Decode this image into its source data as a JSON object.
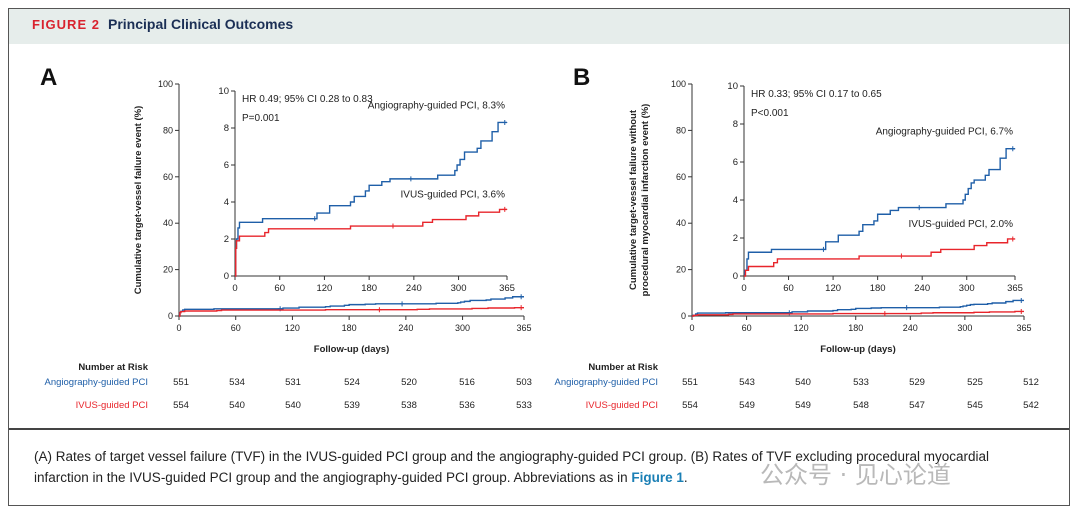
{
  "header": {
    "figure_label": "FIGURE 2",
    "title": "Principal Clinical Outcomes"
  },
  "colors": {
    "angio": "#1f5fa8",
    "ivus": "#e8252b",
    "header_bg": "#e6edeb",
    "figure_label": "#d9232e"
  },
  "risk_table": {
    "title": "Number at Risk"
  },
  "caption": {
    "text": "(A) Rates of target vessel failure (TVF) in the IVUS-guided PCI group and the angiography-guided PCI group. (B) Rates of TVF excluding procedural myocardial infarction in the IVUS-guided PCI group and the angiography-guided PCI group. Abbreviations as in ",
    "link": "Figure 1",
    "end": "."
  },
  "watermark": "公众号 · 见心论道",
  "chart_data": [
    {
      "type": "line",
      "panel": "A",
      "ylabel": "Cumulative target-vessel failure event (%)",
      "xlabel": "Follow-up (days)",
      "xlim": [
        0,
        365
      ],
      "ylim": [
        0,
        100
      ],
      "xticks": [
        0,
        60,
        120,
        180,
        240,
        300,
        365
      ],
      "yticks": [
        0,
        20,
        40,
        60,
        80,
        100
      ],
      "inset": {
        "ylim": [
          0,
          10
        ],
        "yticks": [
          0,
          2,
          4,
          6,
          8,
          10
        ],
        "xticks": [
          0,
          60,
          120,
          180,
          240,
          300,
          365
        ],
        "annotations": [
          "HR 0.49; 95% CI 0.28 to 0.83",
          "P=0.001"
        ]
      },
      "series": [
        {
          "name": "Angiography-guided PCI",
          "label": "Angiography-guided PCI, 8.3%",
          "color": "#1f5fa8",
          "steps": [
            [
              0,
              0
            ],
            [
              1,
              1.5
            ],
            [
              2,
              2
            ],
            [
              4,
              2.6
            ],
            [
              6,
              2.9
            ],
            [
              37,
              3.1
            ],
            [
              107,
              3.1
            ],
            [
              110,
              3.4
            ],
            [
              127,
              3.8
            ],
            [
              155,
              4.0
            ],
            [
              160,
              4.3
            ],
            [
              175,
              4.6
            ],
            [
              180,
              4.9
            ],
            [
              197,
              5.1
            ],
            [
              208,
              5.25
            ],
            [
              272,
              5.45
            ],
            [
              295,
              5.7
            ],
            [
              298,
              6.0
            ],
            [
              302,
              6.3
            ],
            [
              308,
              6.7
            ],
            [
              325,
              6.9
            ],
            [
              330,
              7.3
            ],
            [
              345,
              7.8
            ],
            [
              353,
              8.3
            ],
            [
              365,
              8.3
            ]
          ],
          "censored": [
            107,
            236,
            362
          ],
          "at_risk": [
            551,
            534,
            531,
            524,
            520,
            516,
            503
          ]
        },
        {
          "name": "IVUS-guided PCI",
          "label": "IVUS-guided PCI, 3.6%",
          "color": "#e8252b",
          "steps": [
            [
              0,
              0
            ],
            [
              1,
              1.5
            ],
            [
              2,
              1.9
            ],
            [
              6,
              2.15
            ],
            [
              40,
              2.35
            ],
            [
              45,
              2.55
            ],
            [
              155,
              2.7
            ],
            [
              252,
              2.9
            ],
            [
              265,
              3.05
            ],
            [
              310,
              3.25
            ],
            [
              327,
              3.45
            ],
            [
              355,
              3.6
            ],
            [
              365,
              3.6
            ]
          ],
          "censored": [
            212,
            362
          ],
          "at_risk": [
            554,
            540,
            540,
            539,
            538,
            536,
            533
          ]
        }
      ]
    },
    {
      "type": "line",
      "panel": "B",
      "ylabel": "Cumulative target-vessel failure without procedural myocardial infarction event (%)",
      "ylabel_lines": [
        "Cumulative target-vessel failure without",
        "procedural myocardial infarction event (%)"
      ],
      "xlabel": "Follow-up (days)",
      "xlim": [
        0,
        365
      ],
      "ylim": [
        0,
        100
      ],
      "xticks": [
        0,
        60,
        120,
        180,
        240,
        300,
        365
      ],
      "yticks": [
        0,
        20,
        40,
        60,
        80,
        100
      ],
      "inset": {
        "ylim": [
          0,
          10
        ],
        "yticks": [
          0,
          2,
          4,
          6,
          8,
          10
        ],
        "xticks": [
          0,
          60,
          120,
          180,
          240,
          300,
          365
        ],
        "annotations": [
          "HR 0.33; 95% CI 0.17 to 0.65",
          "P<0.001"
        ]
      },
      "series": [
        {
          "name": "Angiography-guided PCI",
          "label": "Angiography-guided PCI, 6.7%",
          "color": "#1f5fa8",
          "steps": [
            [
              0,
              0
            ],
            [
              1,
              0.3
            ],
            [
              4,
              0.9
            ],
            [
              6,
              1.25
            ],
            [
              37,
              1.4
            ],
            [
              107,
              1.4
            ],
            [
              110,
              1.8
            ],
            [
              127,
              2.15
            ],
            [
              155,
              2.35
            ],
            [
              160,
              2.7
            ],
            [
              175,
              2.9
            ],
            [
              180,
              3.25
            ],
            [
              197,
              3.45
            ],
            [
              208,
              3.6
            ],
            [
              272,
              3.8
            ],
            [
              295,
              4.0
            ],
            [
              298,
              4.3
            ],
            [
              302,
              4.6
            ],
            [
              306,
              4.9
            ],
            [
              310,
              5.05
            ],
            [
              325,
              5.3
            ],
            [
              330,
              5.6
            ],
            [
              345,
              6.2
            ],
            [
              353,
              6.7
            ],
            [
              365,
              6.7
            ]
          ],
          "censored": [
            107,
            236,
            362
          ],
          "at_risk": [
            551,
            543,
            540,
            533,
            529,
            525,
            512
          ]
        },
        {
          "name": "IVUS-guided PCI",
          "label": "IVUS-guided PCI, 2.0%",
          "color": "#e8252b",
          "steps": [
            [
              0,
              0
            ],
            [
              2,
              0.3
            ],
            [
              6,
              0.5
            ],
            [
              40,
              0.7
            ],
            [
              45,
              0.9
            ],
            [
              155,
              1.05
            ],
            [
              252,
              1.25
            ],
            [
              265,
              1.4
            ],
            [
              310,
              1.6
            ],
            [
              327,
              1.75
            ],
            [
              355,
              1.95
            ],
            [
              365,
              1.95
            ]
          ],
          "censored": [
            212,
            362
          ],
          "at_risk": [
            554,
            549,
            549,
            548,
            547,
            545,
            542
          ]
        }
      ]
    }
  ]
}
